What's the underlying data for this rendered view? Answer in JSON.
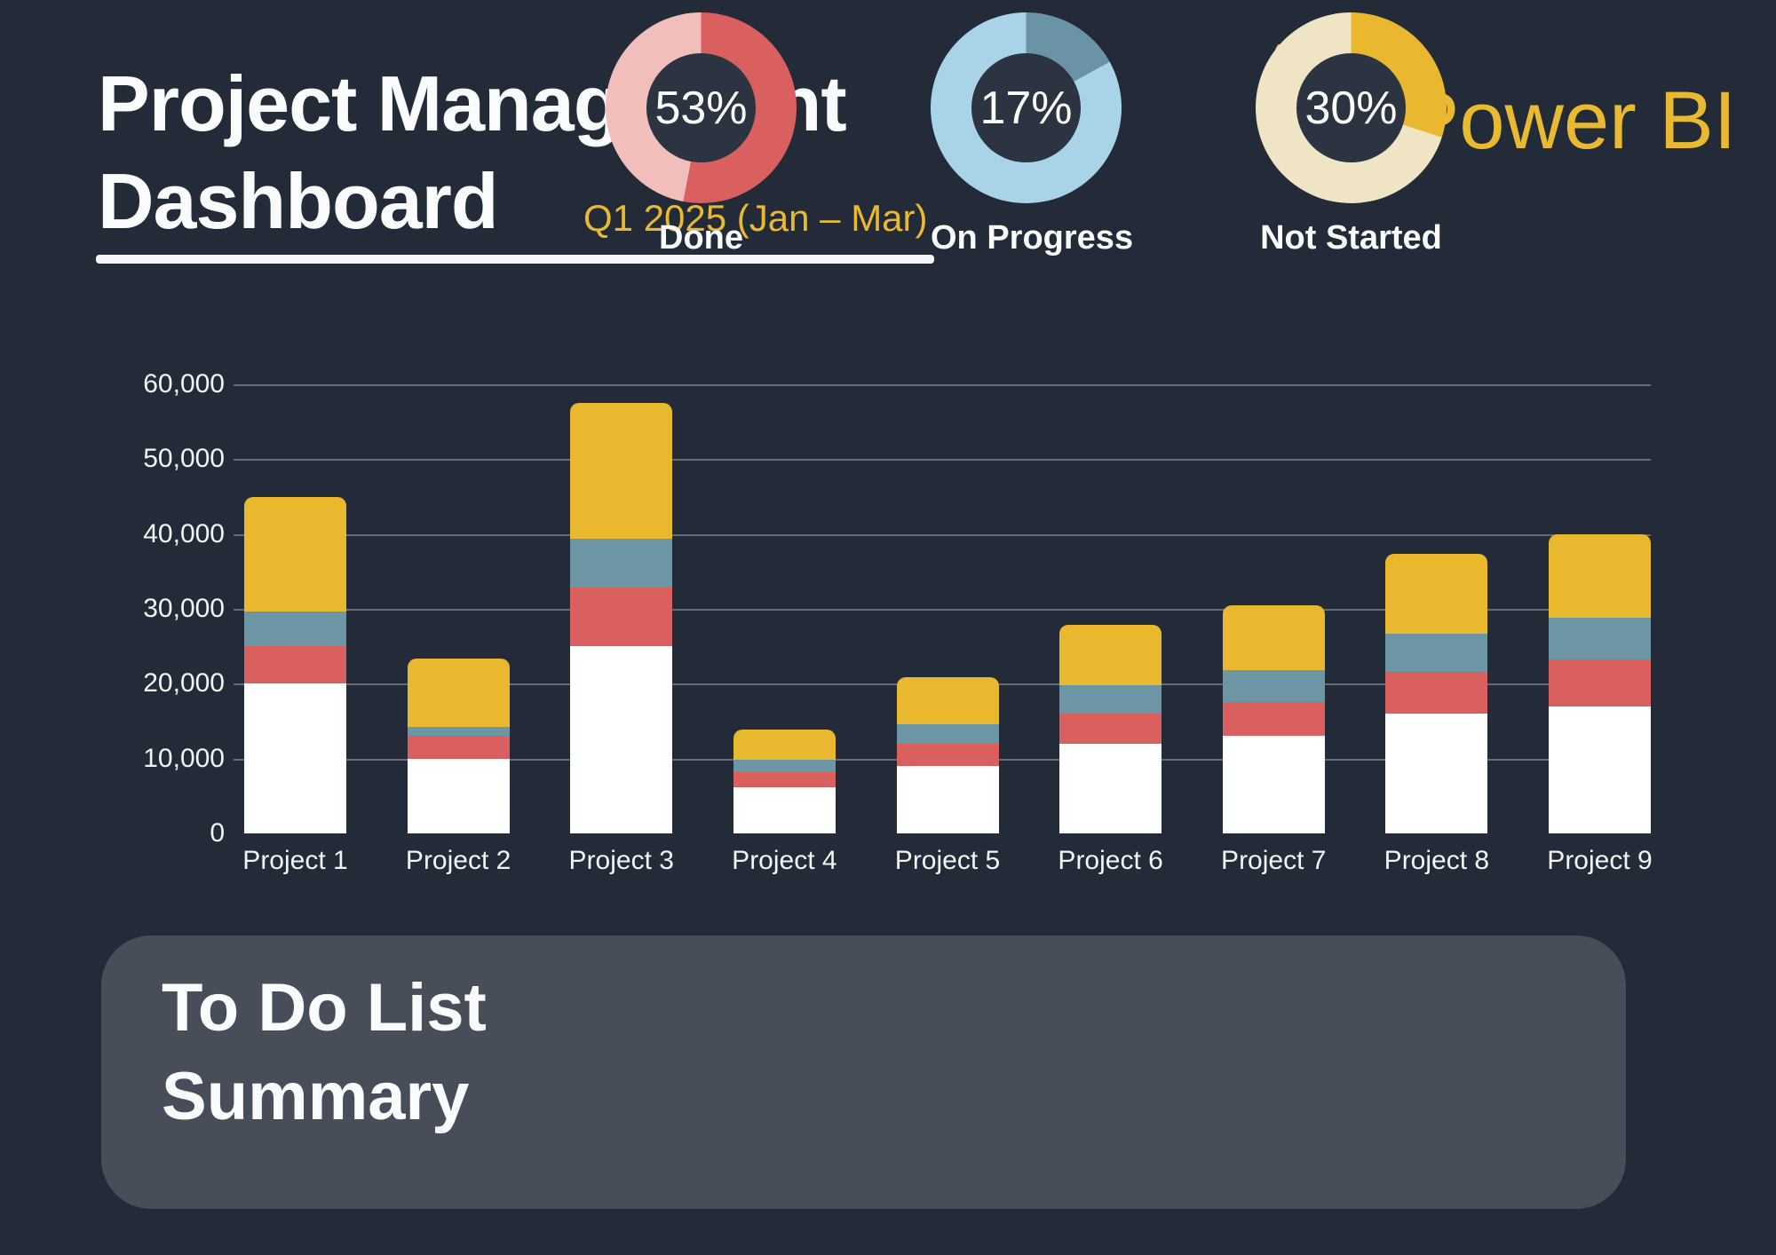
{
  "header": {
    "title_line1": "Project Management",
    "title_line2": "Dashboard",
    "subtitle": "Q1 2025 (Jan – Mar)",
    "logo_text": "Power BI"
  },
  "chart_data": {
    "type": "bar",
    "stacked": true,
    "title": "",
    "xlabel": "",
    "ylabel": "",
    "categories": [
      "Project 1",
      "Project 2",
      "Project 3",
      "Project 4",
      "Project 5",
      "Project 6",
      "Project 7",
      "Project 8",
      "Project 9"
    ],
    "series": [
      {
        "name": "white",
        "color": "#FFFFFF",
        "values": [
          20000,
          10000,
          25000,
          6200,
          9000,
          12000,
          13000,
          16000,
          17000
        ]
      },
      {
        "name": "red",
        "color": "#D9605F",
        "values": [
          5000,
          3100,
          7800,
          2000,
          3000,
          4000,
          4500,
          5600,
          6300
        ]
      },
      {
        "name": "teal",
        "color": "#6D96A4",
        "values": [
          4700,
          1100,
          6600,
          1700,
          2600,
          3800,
          4300,
          5100,
          5500
        ]
      },
      {
        "name": "yellow",
        "color": "#E9B82F",
        "values": [
          15300,
          9200,
          18100,
          4000,
          6300,
          8100,
          8700,
          10700,
          11200
        ]
      }
    ],
    "ylim": [
      0,
      60000
    ],
    "yticks": [
      {
        "value": 60000,
        "label": "60,000"
      },
      {
        "value": 50000,
        "label": "50,000"
      },
      {
        "value": 40000,
        "label": "40,000"
      },
      {
        "value": 30000,
        "label": "30,000"
      },
      {
        "value": 20000,
        "label": "20,000"
      },
      {
        "value": 10000,
        "label": "10,000"
      },
      {
        "value": 0,
        "label": "0"
      }
    ],
    "grid": true,
    "legend": false
  },
  "summary": {
    "title_line1": "To Do List",
    "title_line2": "Summary",
    "donuts": [
      {
        "label": "Done",
        "percent": 53,
        "percent_label": "53%",
        "fill": "#D9605F",
        "track": "#F2BEBC"
      },
      {
        "label": "On Progress",
        "percent": 17,
        "percent_label": "17%",
        "fill": "#6B93A6",
        "track": "#A9D4E8"
      },
      {
        "label": "Not Started",
        "percent": 30,
        "percent_label": "30%",
        "fill": "#E9B82F",
        "track": "#EFE4C4"
      }
    ]
  },
  "colors": {
    "background": "#222B37",
    "panel": "#474E59",
    "hole": "#2B3440",
    "accent": "#E9BA31",
    "text": "#FFFFFF",
    "gridline": "rgba(255,255,255,0.30)"
  }
}
